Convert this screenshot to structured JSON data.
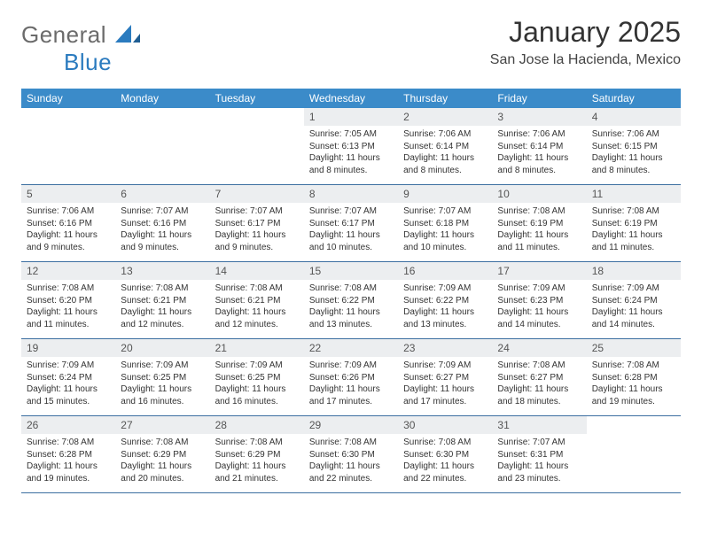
{
  "logo": {
    "word1": "General",
    "word2": "Blue"
  },
  "title": "January 2025",
  "location": "San Jose la Hacienda, Mexico",
  "header_bg": "#3b8bc9",
  "rule_color": "#3b6ea0",
  "daynum_bg": "#eceef0",
  "weekday_fontsize": 12,
  "daynum_fontsize": 12,
  "body_fontsize": 10,
  "weekdays": [
    "Sunday",
    "Monday",
    "Tuesday",
    "Wednesday",
    "Thursday",
    "Friday",
    "Saturday"
  ],
  "weeks": [
    [
      {
        "n": "",
        "sr": "",
        "ss": "",
        "dl": ""
      },
      {
        "n": "",
        "sr": "",
        "ss": "",
        "dl": ""
      },
      {
        "n": "",
        "sr": "",
        "ss": "",
        "dl": ""
      },
      {
        "n": "1",
        "sr": "7:05 AM",
        "ss": "6:13 PM",
        "dl": "11 hours and 8 minutes."
      },
      {
        "n": "2",
        "sr": "7:06 AM",
        "ss": "6:14 PM",
        "dl": "11 hours and 8 minutes."
      },
      {
        "n": "3",
        "sr": "7:06 AM",
        "ss": "6:14 PM",
        "dl": "11 hours and 8 minutes."
      },
      {
        "n": "4",
        "sr": "7:06 AM",
        "ss": "6:15 PM",
        "dl": "11 hours and 8 minutes."
      }
    ],
    [
      {
        "n": "5",
        "sr": "7:06 AM",
        "ss": "6:16 PM",
        "dl": "11 hours and 9 minutes."
      },
      {
        "n": "6",
        "sr": "7:07 AM",
        "ss": "6:16 PM",
        "dl": "11 hours and 9 minutes."
      },
      {
        "n": "7",
        "sr": "7:07 AM",
        "ss": "6:17 PM",
        "dl": "11 hours and 9 minutes."
      },
      {
        "n": "8",
        "sr": "7:07 AM",
        "ss": "6:17 PM",
        "dl": "11 hours and 10 minutes."
      },
      {
        "n": "9",
        "sr": "7:07 AM",
        "ss": "6:18 PM",
        "dl": "11 hours and 10 minutes."
      },
      {
        "n": "10",
        "sr": "7:08 AM",
        "ss": "6:19 PM",
        "dl": "11 hours and 11 minutes."
      },
      {
        "n": "11",
        "sr": "7:08 AM",
        "ss": "6:19 PM",
        "dl": "11 hours and 11 minutes."
      }
    ],
    [
      {
        "n": "12",
        "sr": "7:08 AM",
        "ss": "6:20 PM",
        "dl": "11 hours and 11 minutes."
      },
      {
        "n": "13",
        "sr": "7:08 AM",
        "ss": "6:21 PM",
        "dl": "11 hours and 12 minutes."
      },
      {
        "n": "14",
        "sr": "7:08 AM",
        "ss": "6:21 PM",
        "dl": "11 hours and 12 minutes."
      },
      {
        "n": "15",
        "sr": "7:08 AM",
        "ss": "6:22 PM",
        "dl": "11 hours and 13 minutes."
      },
      {
        "n": "16",
        "sr": "7:09 AM",
        "ss": "6:22 PM",
        "dl": "11 hours and 13 minutes."
      },
      {
        "n": "17",
        "sr": "7:09 AM",
        "ss": "6:23 PM",
        "dl": "11 hours and 14 minutes."
      },
      {
        "n": "18",
        "sr": "7:09 AM",
        "ss": "6:24 PM",
        "dl": "11 hours and 14 minutes."
      }
    ],
    [
      {
        "n": "19",
        "sr": "7:09 AM",
        "ss": "6:24 PM",
        "dl": "11 hours and 15 minutes."
      },
      {
        "n": "20",
        "sr": "7:09 AM",
        "ss": "6:25 PM",
        "dl": "11 hours and 16 minutes."
      },
      {
        "n": "21",
        "sr": "7:09 AM",
        "ss": "6:25 PM",
        "dl": "11 hours and 16 minutes."
      },
      {
        "n": "22",
        "sr": "7:09 AM",
        "ss": "6:26 PM",
        "dl": "11 hours and 17 minutes."
      },
      {
        "n": "23",
        "sr": "7:09 AM",
        "ss": "6:27 PM",
        "dl": "11 hours and 17 minutes."
      },
      {
        "n": "24",
        "sr": "7:08 AM",
        "ss": "6:27 PM",
        "dl": "11 hours and 18 minutes."
      },
      {
        "n": "25",
        "sr": "7:08 AM",
        "ss": "6:28 PM",
        "dl": "11 hours and 19 minutes."
      }
    ],
    [
      {
        "n": "26",
        "sr": "7:08 AM",
        "ss": "6:28 PM",
        "dl": "11 hours and 19 minutes."
      },
      {
        "n": "27",
        "sr": "7:08 AM",
        "ss": "6:29 PM",
        "dl": "11 hours and 20 minutes."
      },
      {
        "n": "28",
        "sr": "7:08 AM",
        "ss": "6:29 PM",
        "dl": "11 hours and 21 minutes."
      },
      {
        "n": "29",
        "sr": "7:08 AM",
        "ss": "6:30 PM",
        "dl": "11 hours and 22 minutes."
      },
      {
        "n": "30",
        "sr": "7:08 AM",
        "ss": "6:30 PM",
        "dl": "11 hours and 22 minutes."
      },
      {
        "n": "31",
        "sr": "7:07 AM",
        "ss": "6:31 PM",
        "dl": "11 hours and 23 minutes."
      },
      {
        "n": "",
        "sr": "",
        "ss": "",
        "dl": ""
      }
    ]
  ],
  "labels": {
    "sunrise": "Sunrise: ",
    "sunset": "Sunset: ",
    "daylight": "Daylight: "
  }
}
